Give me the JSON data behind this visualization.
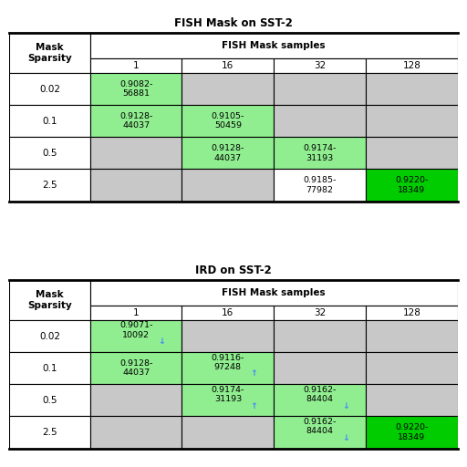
{
  "title1": "FISH Mask on SST-2",
  "title2": "IRD on SST-2",
  "col_labels": [
    "1",
    "16",
    "32",
    "128"
  ],
  "row_labels": [
    "0.02",
    "0.1",
    "0.5",
    "2.5"
  ],
  "table1_cells": [
    [
      "0.9082-\n56881",
      "",
      "",
      ""
    ],
    [
      "0.9128-\n44037",
      "0.9105-\n50459",
      "",
      ""
    ],
    [
      "",
      "0.9128-\n44037",
      "0.9174-\n31193",
      ""
    ],
    [
      "",
      "",
      "0.9185-\n77982",
      "0.9220-\n18349"
    ]
  ],
  "table1_green": [
    [
      true,
      false,
      false,
      false
    ],
    [
      true,
      true,
      false,
      false
    ],
    [
      false,
      true,
      true,
      false
    ],
    [
      false,
      false,
      false,
      true
    ]
  ],
  "table1_bright": [
    [
      false,
      false,
      false,
      false
    ],
    [
      false,
      false,
      false,
      false
    ],
    [
      false,
      false,
      false,
      false
    ],
    [
      false,
      false,
      false,
      true
    ]
  ],
  "table2_cells": [
    [
      "0.9071-\n10092",
      "",
      "",
      ""
    ],
    [
      "0.9128-\n44037",
      "0.9116-\n97248",
      "",
      ""
    ],
    [
      "",
      "0.9174-\n31193",
      "0.9162-\n84404",
      ""
    ],
    [
      "",
      "",
      "0.9162-\n84404",
      "0.9220-\n18349"
    ]
  ],
  "table2_arrows": [
    [
      "↓",
      "",
      "",
      ""
    ],
    [
      "",
      "↑",
      "",
      ""
    ],
    [
      "",
      "↑",
      "↓",
      ""
    ],
    [
      "",
      "",
      "↓",
      ""
    ]
  ],
  "table2_green": [
    [
      true,
      false,
      false,
      false
    ],
    [
      true,
      true,
      false,
      false
    ],
    [
      false,
      true,
      true,
      false
    ],
    [
      false,
      false,
      true,
      true
    ]
  ],
  "table2_bright": [
    [
      false,
      false,
      false,
      false
    ],
    [
      false,
      false,
      false,
      false
    ],
    [
      false,
      false,
      false,
      false
    ],
    [
      false,
      false,
      false,
      true
    ]
  ],
  "light_green": "#90EE90",
  "bright_green": "#00CC00",
  "gray_cell": "#C8C8C8",
  "arrow_color": "#4488FF",
  "figsize": [
    5.12,
    5.12
  ],
  "dpi": 100
}
